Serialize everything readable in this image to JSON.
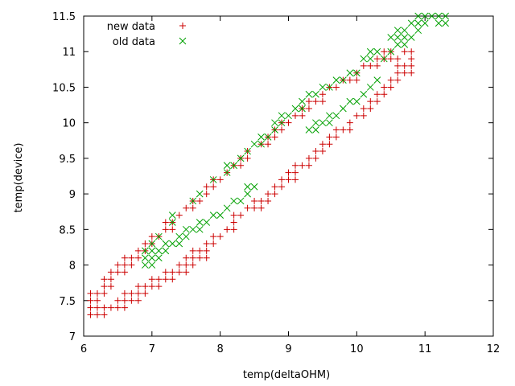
{
  "chart_data": {
    "type": "scatter",
    "title": "",
    "xlabel": "temp(deltaOHM)",
    "ylabel": "temp(device)",
    "xlim": [
      6,
      12
    ],
    "ylim": [
      7,
      11.5
    ],
    "xticks": [
      6,
      7,
      8,
      9,
      10,
      11,
      12
    ],
    "yticks": [
      7,
      7.5,
      8,
      8.5,
      9,
      9.5,
      10,
      10.5,
      11,
      11.5
    ],
    "xtick_labels": [
      "6",
      "7",
      "8",
      "9",
      "10",
      "11",
      "12"
    ],
    "ytick_labels": [
      "7",
      "7.5",
      "8",
      "8.5",
      "9",
      "9.5",
      "10",
      "10.5",
      "11",
      "11.5"
    ],
    "grid": false,
    "legend_position": "top-left",
    "series": [
      {
        "name": "new data",
        "marker": "plus",
        "color": "#cc0000",
        "points": [
          [
            6.1,
            7.3
          ],
          [
            6.2,
            7.3
          ],
          [
            6.3,
            7.3
          ],
          [
            6.1,
            7.4
          ],
          [
            6.2,
            7.4
          ],
          [
            6.3,
            7.4
          ],
          [
            6.4,
            7.4
          ],
          [
            6.5,
            7.4
          ],
          [
            6.6,
            7.4
          ],
          [
            6.1,
            7.5
          ],
          [
            6.2,
            7.5
          ],
          [
            6.5,
            7.5
          ],
          [
            6.6,
            7.5
          ],
          [
            6.7,
            7.5
          ],
          [
            6.8,
            7.5
          ],
          [
            6.1,
            7.6
          ],
          [
            6.2,
            7.6
          ],
          [
            6.3,
            7.6
          ],
          [
            6.6,
            7.6
          ],
          [
            6.7,
            7.6
          ],
          [
            6.8,
            7.6
          ],
          [
            6.9,
            7.6
          ],
          [
            6.3,
            7.7
          ],
          [
            6.4,
            7.7
          ],
          [
            6.8,
            7.7
          ],
          [
            6.9,
            7.7
          ],
          [
            7.0,
            7.7
          ],
          [
            7.1,
            7.7
          ],
          [
            6.3,
            7.8
          ],
          [
            6.4,
            7.8
          ],
          [
            7.0,
            7.8
          ],
          [
            7.1,
            7.8
          ],
          [
            7.2,
            7.8
          ],
          [
            7.3,
            7.8
          ],
          [
            6.4,
            7.9
          ],
          [
            6.5,
            7.9
          ],
          [
            6.6,
            7.9
          ],
          [
            7.2,
            7.9
          ],
          [
            7.3,
            7.9
          ],
          [
            7.4,
            7.9
          ],
          [
            7.5,
            7.9
          ],
          [
            6.5,
            8.0
          ],
          [
            6.6,
            8.0
          ],
          [
            6.7,
            8.0
          ],
          [
            7.4,
            8.0
          ],
          [
            7.5,
            8.0
          ],
          [
            7.6,
            8.0
          ],
          [
            6.6,
            8.1
          ],
          [
            6.7,
            8.1
          ],
          [
            6.8,
            8.1
          ],
          [
            7.5,
            8.1
          ],
          [
            7.6,
            8.1
          ],
          [
            7.7,
            8.1
          ],
          [
            7.8,
            8.1
          ],
          [
            6.8,
            8.2
          ],
          [
            6.9,
            8.2
          ],
          [
            7.6,
            8.2
          ],
          [
            7.7,
            8.2
          ],
          [
            7.8,
            8.2
          ],
          [
            6.9,
            8.3
          ],
          [
            7.0,
            8.3
          ],
          [
            7.8,
            8.3
          ],
          [
            7.9,
            8.3
          ],
          [
            7.0,
            8.4
          ],
          [
            7.1,
            8.4
          ],
          [
            7.9,
            8.4
          ],
          [
            8.0,
            8.4
          ],
          [
            7.2,
            8.5
          ],
          [
            7.3,
            8.5
          ],
          [
            8.1,
            8.5
          ],
          [
            8.2,
            8.5
          ],
          [
            7.2,
            8.6
          ],
          [
            7.3,
            8.6
          ],
          [
            8.2,
            8.6
          ],
          [
            7.4,
            8.7
          ],
          [
            8.2,
            8.7
          ],
          [
            8.3,
            8.7
          ],
          [
            7.5,
            8.8
          ],
          [
            7.6,
            8.8
          ],
          [
            8.4,
            8.8
          ],
          [
            8.5,
            8.8
          ],
          [
            8.6,
            8.8
          ],
          [
            7.6,
            8.9
          ],
          [
            7.7,
            8.9
          ],
          [
            8.5,
            8.9
          ],
          [
            8.6,
            8.9
          ],
          [
            8.7,
            8.9
          ],
          [
            7.8,
            9.0
          ],
          [
            8.7,
            9.0
          ],
          [
            8.8,
            9.0
          ],
          [
            7.8,
            9.1
          ],
          [
            7.9,
            9.1
          ],
          [
            8.8,
            9.1
          ],
          [
            8.9,
            9.1
          ],
          [
            7.9,
            9.2
          ],
          [
            8.0,
            9.2
          ],
          [
            8.9,
            9.2
          ],
          [
            9.0,
            9.2
          ],
          [
            9.1,
            9.2
          ],
          [
            8.1,
            9.3
          ],
          [
            9.0,
            9.3
          ],
          [
            9.1,
            9.3
          ],
          [
            8.2,
            9.4
          ],
          [
            8.3,
            9.4
          ],
          [
            9.1,
            9.4
          ],
          [
            9.2,
            9.4
          ],
          [
            9.3,
            9.4
          ],
          [
            8.3,
            9.5
          ],
          [
            8.4,
            9.5
          ],
          [
            9.3,
            9.5
          ],
          [
            9.4,
            9.5
          ],
          [
            8.4,
            9.6
          ],
          [
            9.4,
            9.6
          ],
          [
            9.5,
            9.6
          ],
          [
            8.6,
            9.7
          ],
          [
            8.7,
            9.7
          ],
          [
            9.5,
            9.7
          ],
          [
            9.6,
            9.7
          ],
          [
            8.7,
            9.8
          ],
          [
            8.8,
            9.8
          ],
          [
            9.6,
            9.8
          ],
          [
            9.7,
            9.8
          ],
          [
            8.8,
            9.9
          ],
          [
            8.9,
            9.9
          ],
          [
            9.7,
            9.9
          ],
          [
            9.8,
            9.9
          ],
          [
            9.9,
            9.9
          ],
          [
            8.9,
            10.0
          ],
          [
            9.0,
            10.0
          ],
          [
            9.9,
            10.0
          ],
          [
            9.1,
            10.1
          ],
          [
            9.2,
            10.1
          ],
          [
            10.0,
            10.1
          ],
          [
            10.1,
            10.1
          ],
          [
            9.2,
            10.2
          ],
          [
            9.3,
            10.2
          ],
          [
            10.1,
            10.2
          ],
          [
            10.2,
            10.2
          ],
          [
            9.3,
            10.3
          ],
          [
            9.4,
            10.3
          ],
          [
            9.5,
            10.3
          ],
          [
            10.2,
            10.3
          ],
          [
            10.3,
            10.3
          ],
          [
            9.5,
            10.4
          ],
          [
            10.3,
            10.4
          ],
          [
            10.4,
            10.4
          ],
          [
            9.6,
            10.5
          ],
          [
            9.7,
            10.5
          ],
          [
            10.4,
            10.5
          ],
          [
            10.5,
            10.5
          ],
          [
            9.8,
            10.6
          ],
          [
            9.9,
            10.6
          ],
          [
            10.0,
            10.6
          ],
          [
            10.5,
            10.6
          ],
          [
            10.6,
            10.6
          ],
          [
            10.0,
            10.7
          ],
          [
            10.6,
            10.7
          ],
          [
            10.7,
            10.7
          ],
          [
            10.8,
            10.7
          ],
          [
            10.1,
            10.8
          ],
          [
            10.2,
            10.8
          ],
          [
            10.3,
            10.8
          ],
          [
            10.6,
            10.8
          ],
          [
            10.7,
            10.8
          ],
          [
            10.8,
            10.8
          ],
          [
            10.3,
            10.9
          ],
          [
            10.4,
            10.9
          ],
          [
            10.5,
            10.9
          ],
          [
            10.6,
            10.9
          ],
          [
            10.8,
            10.9
          ],
          [
            10.4,
            11.0
          ],
          [
            10.5,
            11.0
          ],
          [
            10.7,
            11.0
          ],
          [
            10.8,
            11.0
          ]
        ]
      },
      {
        "name": "old data",
        "marker": "cross",
        "color": "#00a000",
        "points": [
          [
            6.9,
            8.0
          ],
          [
            7.0,
            8.0
          ],
          [
            6.9,
            8.1
          ],
          [
            7.0,
            8.1
          ],
          [
            7.1,
            8.1
          ],
          [
            6.9,
            8.2
          ],
          [
            7.0,
            8.2
          ],
          [
            7.1,
            8.2
          ],
          [
            7.2,
            8.2
          ],
          [
            7.0,
            8.3
          ],
          [
            7.2,
            8.3
          ],
          [
            7.3,
            8.3
          ],
          [
            7.4,
            8.3
          ],
          [
            7.1,
            8.4
          ],
          [
            7.4,
            8.4
          ],
          [
            7.5,
            8.4
          ],
          [
            7.5,
            8.5
          ],
          [
            7.6,
            8.5
          ],
          [
            7.7,
            8.5
          ],
          [
            7.3,
            8.6
          ],
          [
            7.7,
            8.6
          ],
          [
            7.8,
            8.6
          ],
          [
            7.3,
            8.7
          ],
          [
            7.9,
            8.7
          ],
          [
            8.0,
            8.7
          ],
          [
            8.1,
            8.8
          ],
          [
            7.6,
            8.9
          ],
          [
            8.2,
            8.9
          ],
          [
            8.3,
            8.9
          ],
          [
            7.7,
            9.0
          ],
          [
            8.4,
            9.0
          ],
          [
            8.4,
            9.1
          ],
          [
            8.5,
            9.1
          ],
          [
            7.9,
            9.2
          ],
          [
            8.1,
            9.3
          ],
          [
            8.1,
            9.4
          ],
          [
            8.2,
            9.4
          ],
          [
            8.3,
            9.5
          ],
          [
            8.4,
            9.6
          ],
          [
            8.5,
            9.7
          ],
          [
            8.6,
            9.7
          ],
          [
            8.6,
            9.8
          ],
          [
            8.7,
            9.8
          ],
          [
            8.8,
            9.9
          ],
          [
            8.8,
            10.0
          ],
          [
            8.9,
            10.0
          ],
          [
            8.9,
            10.1
          ],
          [
            9.0,
            10.1
          ],
          [
            9.1,
            10.2
          ],
          [
            9.2,
            10.2
          ],
          [
            9.3,
            9.9
          ],
          [
            9.4,
            9.9
          ],
          [
            9.4,
            10.0
          ],
          [
            9.5,
            10.0
          ],
          [
            9.6,
            10.0
          ],
          [
            9.6,
            10.1
          ],
          [
            9.7,
            10.1
          ],
          [
            9.8,
            10.2
          ],
          [
            9.2,
            10.3
          ],
          [
            9.3,
            10.4
          ],
          [
            9.4,
            10.4
          ],
          [
            9.5,
            10.5
          ],
          [
            9.6,
            10.5
          ],
          [
            9.7,
            10.6
          ],
          [
            9.8,
            10.6
          ],
          [
            9.9,
            10.7
          ],
          [
            10.0,
            10.7
          ],
          [
            9.9,
            10.3
          ],
          [
            10.0,
            10.3
          ],
          [
            10.1,
            10.4
          ],
          [
            10.2,
            10.5
          ],
          [
            10.3,
            10.6
          ],
          [
            10.1,
            10.9
          ],
          [
            10.2,
            10.9
          ],
          [
            10.2,
            11.0
          ],
          [
            10.3,
            11.0
          ],
          [
            10.4,
            10.9
          ],
          [
            10.5,
            11.0
          ],
          [
            10.6,
            11.1
          ],
          [
            10.7,
            11.1
          ],
          [
            10.5,
            11.2
          ],
          [
            10.6,
            11.2
          ],
          [
            10.7,
            11.2
          ],
          [
            10.8,
            11.2
          ],
          [
            10.6,
            11.3
          ],
          [
            10.7,
            11.3
          ],
          [
            10.9,
            11.3
          ],
          [
            10.8,
            11.4
          ],
          [
            10.9,
            11.4
          ],
          [
            11.0,
            11.4
          ],
          [
            11.2,
            11.4
          ],
          [
            11.3,
            11.4
          ],
          [
            10.9,
            11.5
          ],
          [
            11.0,
            11.5
          ],
          [
            11.1,
            11.5
          ],
          [
            11.2,
            11.5
          ],
          [
            11.3,
            11.5
          ]
        ]
      }
    ]
  }
}
